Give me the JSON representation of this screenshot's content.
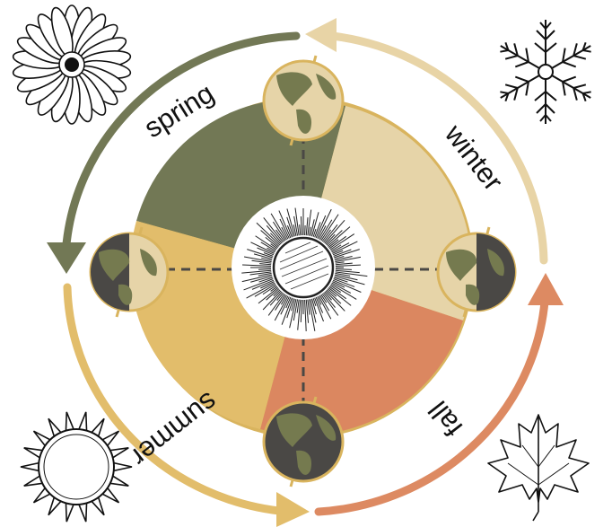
{
  "seasons": [
    {
      "key": "spring",
      "label": "spring",
      "color": "#727855",
      "arrow_color": "#727855",
      "icon": "daisy-flower-icon"
    },
    {
      "key": "winter",
      "label": "winter",
      "color": "#e6d4a8",
      "arrow_color": "#e8d4a6",
      "icon": "snowflake-icon"
    },
    {
      "key": "fall",
      "label": "fall",
      "color": "#db8760",
      "arrow_color": "#dd8a62",
      "icon": "maple-leaf-icon"
    },
    {
      "key": "summer",
      "label": "summer",
      "color": "#e2bd6b",
      "arrow_color": "#e2bd6b",
      "icon": "sun-outline-icon"
    }
  ],
  "palette": {
    "ring_border": "#d9b45e",
    "ocean_dark": "#4a4845",
    "ocean_light": "#e6d4a8",
    "land": "#757a4f",
    "dashed_line": "#4a4845",
    "center_bg": "#ffffff"
  },
  "center_icon": "radiant-sun-icon",
  "earth_icon": "earth-globe-icon"
}
